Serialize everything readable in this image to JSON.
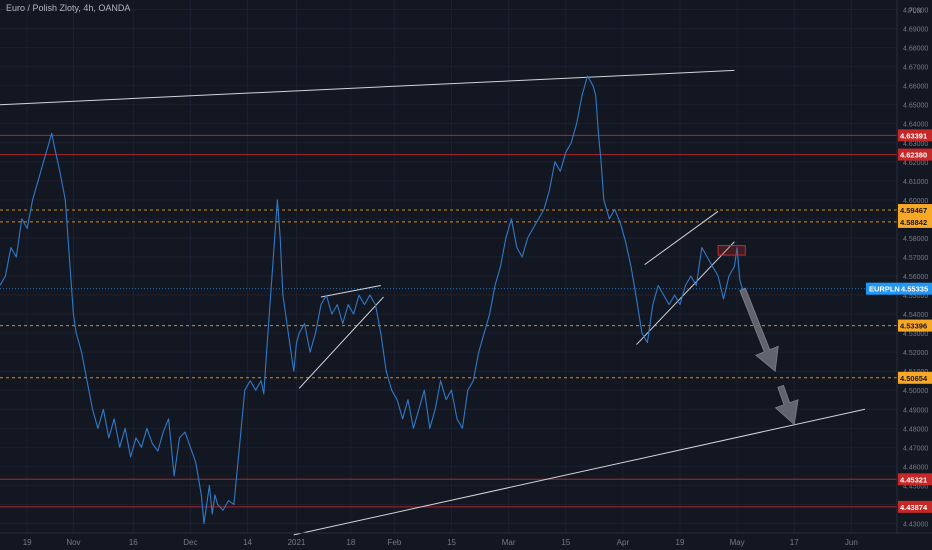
{
  "header": {
    "title": "Euro / Polish Zloty, 4h, OANDA",
    "currency_label": "PLN"
  },
  "colors": {
    "background": "#131722",
    "price_line": "#3179c6",
    "grid": "#1c2030",
    "red_level": "#c82a2a",
    "orange_level": "#f7a21b",
    "white_line": "#d1d4dc",
    "last_price_badge": "#2196f3",
    "arrow": "#6a6d78"
  },
  "chart_data": {
    "type": "line",
    "symbol": "EURPLN",
    "timeframe": "4h",
    "ylim": [
      4.425,
      4.705
    ],
    "ytick_labels": [
      "4.43000",
      "4.44000",
      "4.45000",
      "4.46000",
      "4.47000",
      "4.48000",
      "4.49000",
      "4.50000",
      "4.51000",
      "4.52000",
      "4.53000",
      "4.54000",
      "4.55000",
      "4.56000",
      "4.57000",
      "4.58000",
      "4.59000",
      "4.60000",
      "4.61000",
      "4.62000",
      "4.63000",
      "4.64000",
      "4.65000",
      "4.66000",
      "4.67000",
      "4.68000",
      "4.69000",
      "4.70000"
    ],
    "x_ticks": [
      {
        "label": "19",
        "x": 10
      },
      {
        "label": "Nov",
        "x": 27
      },
      {
        "label": "16",
        "x": 49
      },
      {
        "label": "Dec",
        "x": 70
      },
      {
        "label": "14",
        "x": 91
      },
      {
        "label": "2021",
        "x": 109
      },
      {
        "label": "18",
        "x": 129
      },
      {
        "label": "Feb",
        "x": 145
      },
      {
        "label": "15",
        "x": 166
      },
      {
        "label": "Mar",
        "x": 187
      },
      {
        "label": "15",
        "x": 208
      },
      {
        "label": "Apr",
        "x": 229
      },
      {
        "label": "19",
        "x": 250
      },
      {
        "label": "May",
        "x": 271
      },
      {
        "label": "17",
        "x": 292
      },
      {
        "label": "Jun",
        "x": 313
      }
    ],
    "x_range": [
      0,
      330
    ],
    "series": [
      {
        "points": [
          [
            0,
            4.555
          ],
          [
            2,
            4.56
          ],
          [
            4,
            4.575
          ],
          [
            6,
            4.57
          ],
          [
            8,
            4.59
          ],
          [
            10,
            4.585
          ],
          [
            12,
            4.6
          ],
          [
            14,
            4.61
          ],
          [
            16,
            4.62
          ],
          [
            18,
            4.63
          ],
          [
            19,
            4.635
          ],
          [
            20,
            4.628
          ],
          [
            22,
            4.615
          ],
          [
            24,
            4.6
          ],
          [
            25,
            4.58
          ],
          [
            26,
            4.56
          ],
          [
            27,
            4.54
          ],
          [
            28,
            4.53
          ],
          [
            30,
            4.52
          ],
          [
            32,
            4.505
          ],
          [
            34,
            4.49
          ],
          [
            36,
            4.48
          ],
          [
            38,
            4.49
          ],
          [
            40,
            4.475
          ],
          [
            42,
            4.485
          ],
          [
            44,
            4.47
          ],
          [
            46,
            4.48
          ],
          [
            48,
            4.465
          ],
          [
            50,
            4.475
          ],
          [
            52,
            4.47
          ],
          [
            54,
            4.48
          ],
          [
            56,
            4.472
          ],
          [
            58,
            4.468
          ],
          [
            60,
            4.478
          ],
          [
            62,
            4.485
          ],
          [
            63,
            4.47
          ],
          [
            64,
            4.455
          ],
          [
            66,
            4.475
          ],
          [
            68,
            4.478
          ],
          [
            70,
            4.47
          ],
          [
            72,
            4.462
          ],
          [
            74,
            4.445
          ],
          [
            75,
            4.43
          ],
          [
            76,
            4.44
          ],
          [
            77,
            4.45
          ],
          [
            78,
            4.435
          ],
          [
            79,
            4.445
          ],
          [
            80,
            4.44
          ],
          [
            82,
            4.437
          ],
          [
            84,
            4.442
          ],
          [
            86,
            4.44
          ],
          [
            88,
            4.47
          ],
          [
            90,
            4.5
          ],
          [
            92,
            4.505
          ],
          [
            94,
            4.5
          ],
          [
            96,
            4.505
          ],
          [
            97,
            4.498
          ],
          [
            98,
            4.52
          ],
          [
            99,
            4.54
          ],
          [
            100,
            4.56
          ],
          [
            101,
            4.58
          ],
          [
            102,
            4.6
          ],
          [
            103,
            4.58
          ],
          [
            104,
            4.55
          ],
          [
            105,
            4.54
          ],
          [
            106,
            4.53
          ],
          [
            107,
            4.52
          ],
          [
            108,
            4.51
          ],
          [
            109,
            4.525
          ],
          [
            110,
            4.53
          ],
          [
            112,
            4.535
          ],
          [
            114,
            4.52
          ],
          [
            116,
            4.53
          ],
          [
            118,
            4.545
          ],
          [
            120,
            4.55
          ],
          [
            122,
            4.54
          ],
          [
            124,
            4.545
          ],
          [
            126,
            4.535
          ],
          [
            128,
            4.545
          ],
          [
            130,
            4.54
          ],
          [
            132,
            4.55
          ],
          [
            134,
            4.545
          ],
          [
            136,
            4.55
          ],
          [
            138,
            4.545
          ],
          [
            140,
            4.53
          ],
          [
            142,
            4.51
          ],
          [
            144,
            4.5
          ],
          [
            146,
            4.495
          ],
          [
            148,
            4.485
          ],
          [
            150,
            4.495
          ],
          [
            152,
            4.48
          ],
          [
            154,
            4.49
          ],
          [
            156,
            4.5
          ],
          [
            158,
            4.48
          ],
          [
            160,
            4.49
          ],
          [
            162,
            4.505
          ],
          [
            164,
            4.495
          ],
          [
            166,
            4.5
          ],
          [
            168,
            4.485
          ],
          [
            170,
            4.48
          ],
          [
            172,
            4.5
          ],
          [
            174,
            4.505
          ],
          [
            176,
            4.52
          ],
          [
            178,
            4.53
          ],
          [
            180,
            4.54
          ],
          [
            182,
            4.555
          ],
          [
            184,
            4.565
          ],
          [
            186,
            4.58
          ],
          [
            188,
            4.59
          ],
          [
            190,
            4.575
          ],
          [
            192,
            4.57
          ],
          [
            194,
            4.58
          ],
          [
            196,
            4.585
          ],
          [
            198,
            4.59
          ],
          [
            200,
            4.595
          ],
          [
            202,
            4.605
          ],
          [
            204,
            4.62
          ],
          [
            206,
            4.615
          ],
          [
            208,
            4.625
          ],
          [
            210,
            4.63
          ],
          [
            212,
            4.64
          ],
          [
            214,
            4.655
          ],
          [
            216,
            4.665
          ],
          [
            218,
            4.66
          ],
          [
            219,
            4.655
          ],
          [
            220,
            4.635
          ],
          [
            221,
            4.62
          ],
          [
            222,
            4.6
          ],
          [
            224,
            4.59
          ],
          [
            226,
            4.595
          ],
          [
            228,
            4.588
          ],
          [
            230,
            4.578
          ],
          [
            232,
            4.565
          ],
          [
            234,
            4.548
          ],
          [
            236,
            4.53
          ],
          [
            238,
            4.525
          ],
          [
            240,
            4.545
          ],
          [
            242,
            4.555
          ],
          [
            244,
            4.55
          ],
          [
            246,
            4.545
          ],
          [
            248,
            4.55
          ],
          [
            250,
            4.545
          ],
          [
            252,
            4.555
          ],
          [
            254,
            4.56
          ],
          [
            256,
            4.555
          ],
          [
            258,
            4.575
          ],
          [
            260,
            4.57
          ],
          [
            262,
            4.565
          ],
          [
            264,
            4.56
          ],
          [
            266,
            4.548
          ],
          [
            268,
            4.56
          ],
          [
            270,
            4.565
          ],
          [
            271,
            4.575
          ],
          [
            272,
            4.558
          ],
          [
            273,
            4.553
          ]
        ]
      }
    ],
    "horizontal_levels": [
      {
        "value": 4.63391,
        "label": "4.63391",
        "style": "red"
      },
      {
        "value": 4.6238,
        "label": "4.62380",
        "style": "red"
      },
      {
        "value": 4.59467,
        "label": "4.59467",
        "style": "orange"
      },
      {
        "value": 4.58842,
        "label": "4.58842",
        "style": "orange"
      },
      {
        "value": 4.53396,
        "label": "4.53396",
        "style": "orange"
      },
      {
        "value": 4.50654,
        "label": "4.50654",
        "style": "orange"
      },
      {
        "value": 4.45321,
        "label": "4.45321",
        "style": "red"
      },
      {
        "value": 4.43874,
        "label": "4.43874",
        "style": "red"
      }
    ],
    "last_price": {
      "name": "EURPLN",
      "value": 4.55335,
      "label": "4.55335"
    },
    "trend_lines": [
      {
        "x1": 0,
        "y1": 4.65,
        "x2": 270,
        "y2": 4.668
      },
      {
        "x1": 108,
        "y1": 4.424,
        "x2": 318,
        "y2": 4.49
      },
      {
        "x1": 118,
        "y1": 4.549,
        "x2": 140,
        "y2": 4.555
      },
      {
        "x1": 110,
        "y1": 4.501,
        "x2": 141,
        "y2": 4.549
      },
      {
        "x1": 237,
        "y1": 4.566,
        "x2": 264,
        "y2": 4.594
      },
      {
        "x1": 234,
        "y1": 4.524,
        "x2": 270,
        "y2": 4.578
      }
    ],
    "marker_box": {
      "x1": 264,
      "x2": 274,
      "y1": 4.571,
      "y2": 4.576
    },
    "arrows": [
      {
        "x1": 273,
        "y1": 4.553,
        "x2": 285,
        "y2": 4.51
      },
      {
        "x1": 287,
        "y1": 4.502,
        "x2": 292,
        "y2": 4.482
      }
    ]
  }
}
